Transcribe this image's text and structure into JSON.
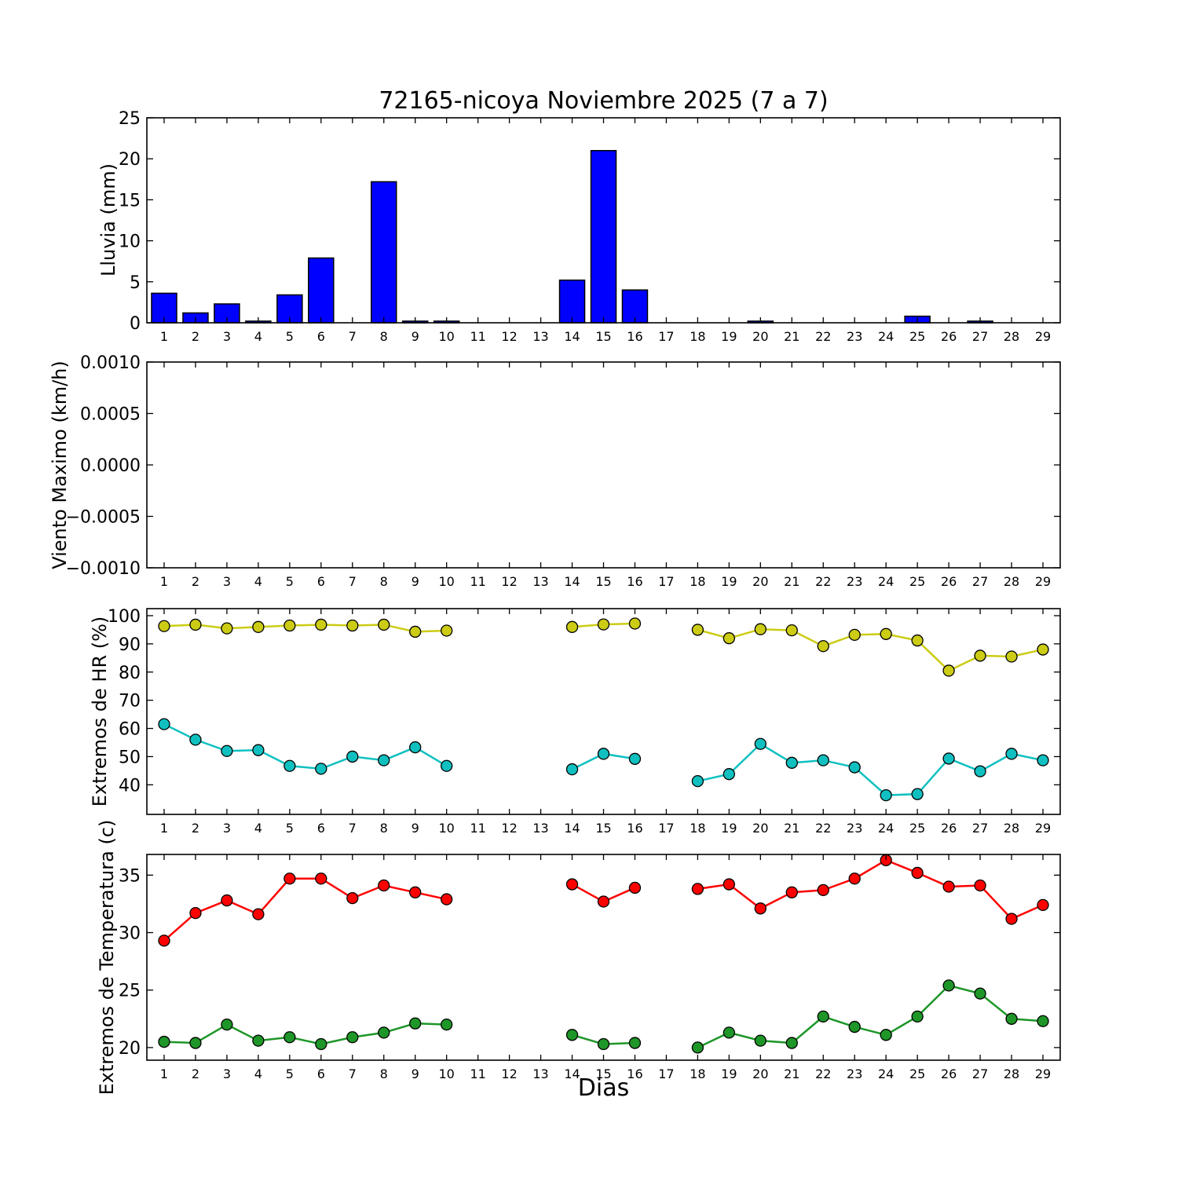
{
  "title": "72165-nicoya Noviembre 2025  (7 a 7)",
  "xlabel": "Dias",
  "figure": {
    "background": "#ffffff",
    "axes_edge_color": "#000000",
    "tick_label_color": "#000000"
  },
  "x": {
    "categories": [
      1,
      2,
      3,
      4,
      5,
      6,
      7,
      8,
      9,
      10,
      11,
      12,
      13,
      14,
      15,
      16,
      17,
      18,
      19,
      20,
      21,
      22,
      23,
      24,
      25,
      26,
      27,
      28,
      29
    ],
    "xlim": [
      0.45,
      29.55
    ]
  },
  "chart_data": [
    {
      "type": "bar",
      "ylabel": "Lluvia (mm)",
      "yticks": [
        0,
        5,
        10,
        15,
        20,
        25
      ],
      "ytick_labels": [
        "0",
        "5",
        "10",
        "15",
        "20",
        "25"
      ],
      "ylim": [
        0,
        25
      ],
      "grid": false,
      "bar_color": "#0000ff",
      "bar_edge_color": "#000000",
      "values": [
        3.6,
        1.2,
        2.3,
        0.2,
        3.4,
        7.9,
        0,
        17.2,
        0.2,
        0.2,
        0,
        0,
        0,
        5.2,
        21.0,
        4.0,
        0,
        0,
        0,
        0.2,
        0,
        0,
        0,
        0,
        0.8,
        0,
        0.2,
        0,
        0
      ]
    },
    {
      "type": "line",
      "ylabel": "Viento Maximo (km/h)",
      "yticks": [
        0.001,
        0.0005,
        0.0,
        -0.0005,
        -0.001
      ],
      "ytick_labels": [
        "0.0010",
        "0.0005",
        "0.0000",
        "−0.0005",
        "−0.0010"
      ],
      "ylim": [
        -0.001,
        0.001
      ],
      "grid": false,
      "series": []
    },
    {
      "type": "line",
      "ylabel": "Extremos de HR (%)",
      "yticks": [
        40,
        50,
        60,
        70,
        80,
        90,
        100
      ],
      "ytick_labels": [
        "40",
        "50",
        "60",
        "70",
        "80",
        "90",
        "100"
      ],
      "ylim": [
        29.5,
        102.5
      ],
      "grid": false,
      "series": [
        {
          "color": "#cccc14",
          "values": [
            96.3,
            96.8,
            95.5,
            96.0,
            96.5,
            96.8,
            96.5,
            96.8,
            94.3,
            94.7,
            null,
            null,
            null,
            96.0,
            96.9,
            97.2,
            null,
            95.0,
            92.0,
            95.2,
            94.8,
            89.2,
            93.2,
            93.5,
            91.2,
            80.5,
            85.8,
            85.5,
            88.0
          ]
        },
        {
          "color": "#10c0c0",
          "values": [
            61.5,
            56.0,
            52.0,
            52.3,
            46.7,
            45.7,
            50.0,
            48.7,
            53.3,
            46.7,
            null,
            null,
            null,
            45.5,
            51.0,
            49.2,
            null,
            41.3,
            43.8,
            54.5,
            47.8,
            48.7,
            46.2,
            36.3,
            36.7,
            49.3,
            44.8,
            51.0,
            48.7
          ]
        }
      ]
    },
    {
      "type": "line",
      "ylabel": "Extremos de Temperatura (c)",
      "yticks": [
        20,
        25,
        30,
        35
      ],
      "ytick_labels": [
        "20",
        "25",
        "30",
        "35"
      ],
      "ylim": [
        18.9,
        36.8
      ],
      "grid": false,
      "series": [
        {
          "color": "#ff0000",
          "values": [
            29.3,
            31.7,
            32.8,
            31.6,
            34.7,
            34.7,
            33.0,
            34.1,
            33.5,
            32.9,
            null,
            null,
            null,
            34.2,
            32.7,
            33.9,
            null,
            33.8,
            34.2,
            32.1,
            33.5,
            33.7,
            34.7,
            36.3,
            35.2,
            34.0,
            34.1,
            31.2,
            32.4
          ]
        },
        {
          "color": "#1e9628",
          "values": [
            20.5,
            20.4,
            22.0,
            20.6,
            20.9,
            20.3,
            20.9,
            21.3,
            22.1,
            22.0,
            null,
            null,
            null,
            21.1,
            20.3,
            20.4,
            null,
            20.0,
            21.3,
            20.6,
            20.4,
            22.7,
            21.8,
            21.1,
            22.7,
            25.4,
            24.7,
            22.5,
            22.3
          ]
        }
      ]
    }
  ]
}
